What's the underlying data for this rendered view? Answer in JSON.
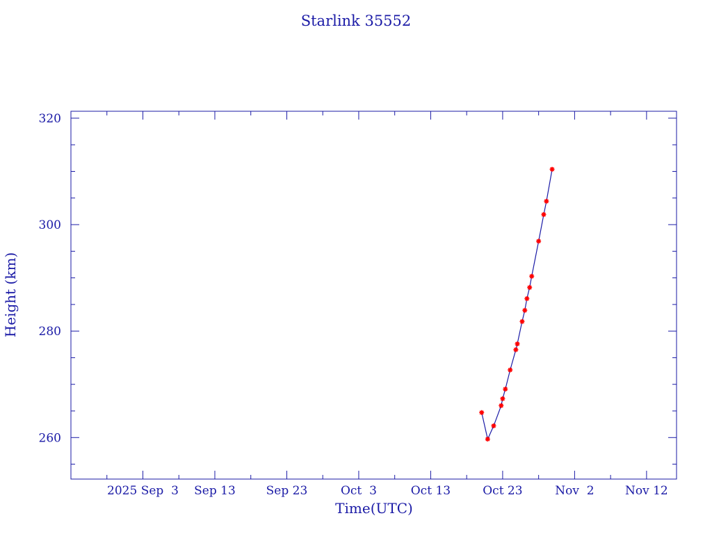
{
  "chart_data": {
    "type": "line",
    "title": "Starlink 35552",
    "xlabel": "Time(UTC)",
    "ylabel": "Height (km)",
    "xlim": [
      "2025-08-24T00:00Z",
      "2025-11-16T04:00Z"
    ],
    "ylim": [
      252.2,
      321.3
    ],
    "x_ticks": [
      {
        "date": "2025-09-03T00:00Z",
        "label": "2025 Sep  3"
      },
      {
        "date": "2025-09-13T00:00Z",
        "label": "Sep 13"
      },
      {
        "date": "2025-09-23T00:00Z",
        "label": "Sep 23"
      },
      {
        "date": "2025-10-03T00:00Z",
        "label": "Oct  3"
      },
      {
        "date": "2025-10-13T00:00Z",
        "label": "Oct 13"
      },
      {
        "date": "2025-10-23T00:00Z",
        "label": "Oct 23"
      },
      {
        "date": "2025-11-02T00:00Z",
        "label": "Nov  2"
      },
      {
        "date": "2025-11-12T00:00Z",
        "label": "Nov 12"
      }
    ],
    "y_ticks": [
      260,
      280,
      300,
      320
    ],
    "grid": false,
    "colors": {
      "axis": "#1a1aa6",
      "line": "#1a1aa6",
      "marker": "#ff0000"
    },
    "series": [
      {
        "marker": "star",
        "points": [
          {
            "x": "2025-10-20T02:00Z",
            "y": 264.7
          },
          {
            "x": "2025-10-20T22:00Z",
            "y": 259.7
          },
          {
            "x": "2025-10-21T18:00Z",
            "y": 262.2
          },
          {
            "x": "2025-10-22T19:00Z",
            "y": 266.0
          },
          {
            "x": "2025-10-23T00:00Z",
            "y": 267.3
          },
          {
            "x": "2025-10-23T09:00Z",
            "y": 269.1
          },
          {
            "x": "2025-10-24T01:00Z",
            "y": 272.7
          },
          {
            "x": "2025-10-24T20:00Z",
            "y": 276.5
          },
          {
            "x": "2025-10-25T01:00Z",
            "y": 277.6
          },
          {
            "x": "2025-10-25T17:00Z",
            "y": 281.8
          },
          {
            "x": "2025-10-26T02:00Z",
            "y": 283.9
          },
          {
            "x": "2025-10-26T09:00Z",
            "y": 286.1
          },
          {
            "x": "2025-10-26T18:00Z",
            "y": 288.2
          },
          {
            "x": "2025-10-27T01:00Z",
            "y": 290.3
          },
          {
            "x": "2025-10-28T00:00Z",
            "y": 296.9
          },
          {
            "x": "2025-10-28T17:00Z",
            "y": 301.9
          },
          {
            "x": "2025-10-29T02:00Z",
            "y": 304.4
          },
          {
            "x": "2025-10-29T21:00Z",
            "y": 310.4
          }
        ]
      }
    ]
  }
}
